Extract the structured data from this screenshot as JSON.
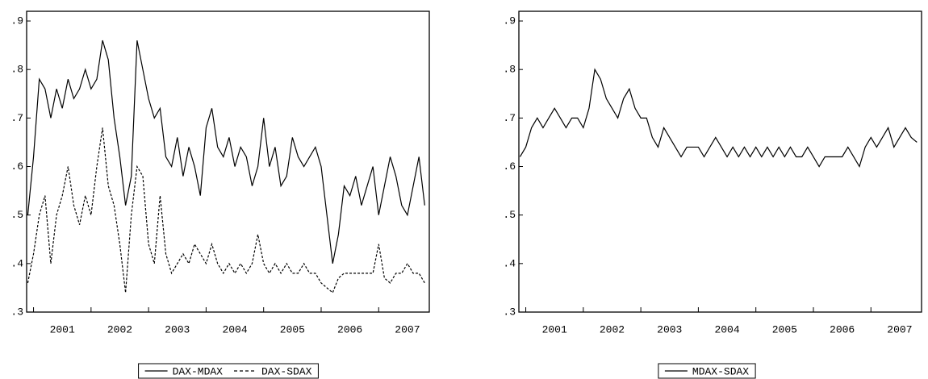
{
  "chart_data": [
    {
      "type": "line",
      "x": [
        2000.9,
        2001.0,
        2001.1,
        2001.2,
        2001.3,
        2001.4,
        2001.5,
        2001.6,
        2001.7,
        2001.8,
        2001.9,
        2002.0,
        2002.1,
        2002.2,
        2002.3,
        2002.4,
        2002.5,
        2002.6,
        2002.7,
        2002.8,
        2002.9,
        2003.0,
        2003.1,
        2003.2,
        2003.3,
        2003.4,
        2003.5,
        2003.6,
        2003.7,
        2003.8,
        2003.9,
        2004.0,
        2004.1,
        2004.2,
        2004.3,
        2004.4,
        2004.5,
        2004.6,
        2004.7,
        2004.8,
        2004.9,
        2005.0,
        2005.1,
        2005.2,
        2005.3,
        2005.4,
        2005.5,
        2005.6,
        2005.7,
        2005.8,
        2005.9,
        2006.0,
        2006.1,
        2006.2,
        2006.3,
        2006.4,
        2006.5,
        2006.6,
        2006.7,
        2006.8,
        2006.9,
        2007.0,
        2007.1,
        2007.2,
        2007.3,
        2007.4,
        2007.5,
        2007.6,
        2007.7,
        2007.8
      ],
      "series": [
        {
          "name": "DAX-MDAX",
          "color": "#000000",
          "dash": false,
          "values": [
            0.5,
            0.62,
            0.78,
            0.76,
            0.7,
            0.76,
            0.72,
            0.78,
            0.74,
            0.76,
            0.8,
            0.76,
            0.78,
            0.86,
            0.82,
            0.7,
            0.62,
            0.52,
            0.58,
            0.86,
            0.8,
            0.74,
            0.7,
            0.72,
            0.62,
            0.6,
            0.66,
            0.58,
            0.64,
            0.6,
            0.54,
            0.68,
            0.72,
            0.64,
            0.62,
            0.66,
            0.6,
            0.64,
            0.62,
            0.56,
            0.6,
            0.7,
            0.6,
            0.64,
            0.56,
            0.58,
            0.66,
            0.62,
            0.6,
            0.62,
            0.64,
            0.6,
            0.5,
            0.4,
            0.46,
            0.56,
            0.54,
            0.58,
            0.52,
            0.56,
            0.6,
            0.5,
            0.56,
            0.62,
            0.58,
            0.52,
            0.5,
            0.56,
            0.62,
            0.52
          ]
        },
        {
          "name": "DAX-SDAX",
          "color": "#000000",
          "dash": true,
          "values": [
            0.36,
            0.42,
            0.5,
            0.54,
            0.4,
            0.5,
            0.54,
            0.6,
            0.52,
            0.48,
            0.54,
            0.5,
            0.6,
            0.68,
            0.56,
            0.52,
            0.44,
            0.34,
            0.5,
            0.6,
            0.58,
            0.44,
            0.4,
            0.54,
            0.42,
            0.38,
            0.4,
            0.42,
            0.4,
            0.44,
            0.42,
            0.4,
            0.44,
            0.4,
            0.38,
            0.4,
            0.38,
            0.4,
            0.38,
            0.4,
            0.46,
            0.4,
            0.38,
            0.4,
            0.38,
            0.4,
            0.38,
            0.38,
            0.4,
            0.38,
            0.38,
            0.36,
            0.35,
            0.34,
            0.37,
            0.38,
            0.38,
            0.38,
            0.38,
            0.38,
            0.38,
            0.44,
            0.37,
            0.36,
            0.38,
            0.38,
            0.4,
            0.38,
            0.38,
            0.36
          ]
        }
      ],
      "xlim": [
        2000.88,
        2007.88
      ],
      "xticks": [
        {
          "value": 2001,
          "label": "2001"
        },
        {
          "value": 2002,
          "label": "2002"
        },
        {
          "value": 2003,
          "label": "2003"
        },
        {
          "value": 2004,
          "label": "2004"
        },
        {
          "value": 2005,
          "label": "2005"
        },
        {
          "value": 2006,
          "label": "2006"
        },
        {
          "value": 2007,
          "label": "2007"
        }
      ],
      "ylim": [
        0.3,
        0.92
      ],
      "yticks": [
        {
          "value": 0.3,
          "label": ".3"
        },
        {
          "value": 0.4,
          "label": ".4"
        },
        {
          "value": 0.5,
          "label": ".5"
        },
        {
          "value": 0.6,
          "label": ".6"
        },
        {
          "value": 0.7,
          "label": ".7"
        },
        {
          "value": 0.8,
          "label": ".8"
        },
        {
          "value": 0.9,
          "label": ".9"
        }
      ]
    },
    {
      "type": "line",
      "x": [
        2000.9,
        2001.0,
        2001.1,
        2001.2,
        2001.3,
        2001.4,
        2001.5,
        2001.6,
        2001.7,
        2001.8,
        2001.9,
        2002.0,
        2002.1,
        2002.2,
        2002.3,
        2002.4,
        2002.5,
        2002.6,
        2002.7,
        2002.8,
        2002.9,
        2003.0,
        2003.1,
        2003.2,
        2003.3,
        2003.4,
        2003.5,
        2003.6,
        2003.7,
        2003.8,
        2003.9,
        2004.0,
        2004.1,
        2004.2,
        2004.3,
        2004.4,
        2004.5,
        2004.6,
        2004.7,
        2004.8,
        2004.9,
        2005.0,
        2005.1,
        2005.2,
        2005.3,
        2005.4,
        2005.5,
        2005.6,
        2005.7,
        2005.8,
        2005.9,
        2006.0,
        2006.1,
        2006.2,
        2006.3,
        2006.4,
        2006.5,
        2006.6,
        2006.7,
        2006.8,
        2006.9,
        2007.0,
        2007.1,
        2007.2,
        2007.3,
        2007.4,
        2007.5,
        2007.6,
        2007.7,
        2007.8
      ],
      "series": [
        {
          "name": "MDAX-SDAX",
          "color": "#000000",
          "dash": false,
          "values": [
            0.62,
            0.64,
            0.68,
            0.7,
            0.68,
            0.7,
            0.72,
            0.7,
            0.68,
            0.7,
            0.7,
            0.68,
            0.72,
            0.8,
            0.78,
            0.74,
            0.72,
            0.7,
            0.74,
            0.76,
            0.72,
            0.7,
            0.7,
            0.66,
            0.64,
            0.68,
            0.66,
            0.64,
            0.62,
            0.64,
            0.64,
            0.64,
            0.62,
            0.64,
            0.66,
            0.64,
            0.62,
            0.64,
            0.62,
            0.64,
            0.62,
            0.64,
            0.62,
            0.64,
            0.62,
            0.64,
            0.62,
            0.64,
            0.62,
            0.62,
            0.64,
            0.62,
            0.6,
            0.62,
            0.62,
            0.62,
            0.62,
            0.64,
            0.62,
            0.6,
            0.64,
            0.66,
            0.64,
            0.66,
            0.68,
            0.64,
            0.66,
            0.68,
            0.66,
            0.65
          ]
        }
      ],
      "xlim": [
        2000.88,
        2007.88
      ],
      "xticks": [
        {
          "value": 2001,
          "label": "2001"
        },
        {
          "value": 2002,
          "label": "2002"
        },
        {
          "value": 2003,
          "label": "2003"
        },
        {
          "value": 2004,
          "label": "2004"
        },
        {
          "value": 2005,
          "label": "2005"
        },
        {
          "value": 2006,
          "label": "2006"
        },
        {
          "value": 2007,
          "label": "2007"
        }
      ],
      "ylim": [
        0.3,
        0.92
      ],
      "yticks": [
        {
          "value": 0.3,
          "label": ".3"
        },
        {
          "value": 0.4,
          "label": ".4"
        },
        {
          "value": 0.5,
          "label": ".5"
        },
        {
          "value": 0.6,
          "label": ".6"
        },
        {
          "value": 0.7,
          "label": ".7"
        },
        {
          "value": 0.8,
          "label": ".8"
        },
        {
          "value": 0.9,
          "label": ".9"
        }
      ]
    }
  ]
}
